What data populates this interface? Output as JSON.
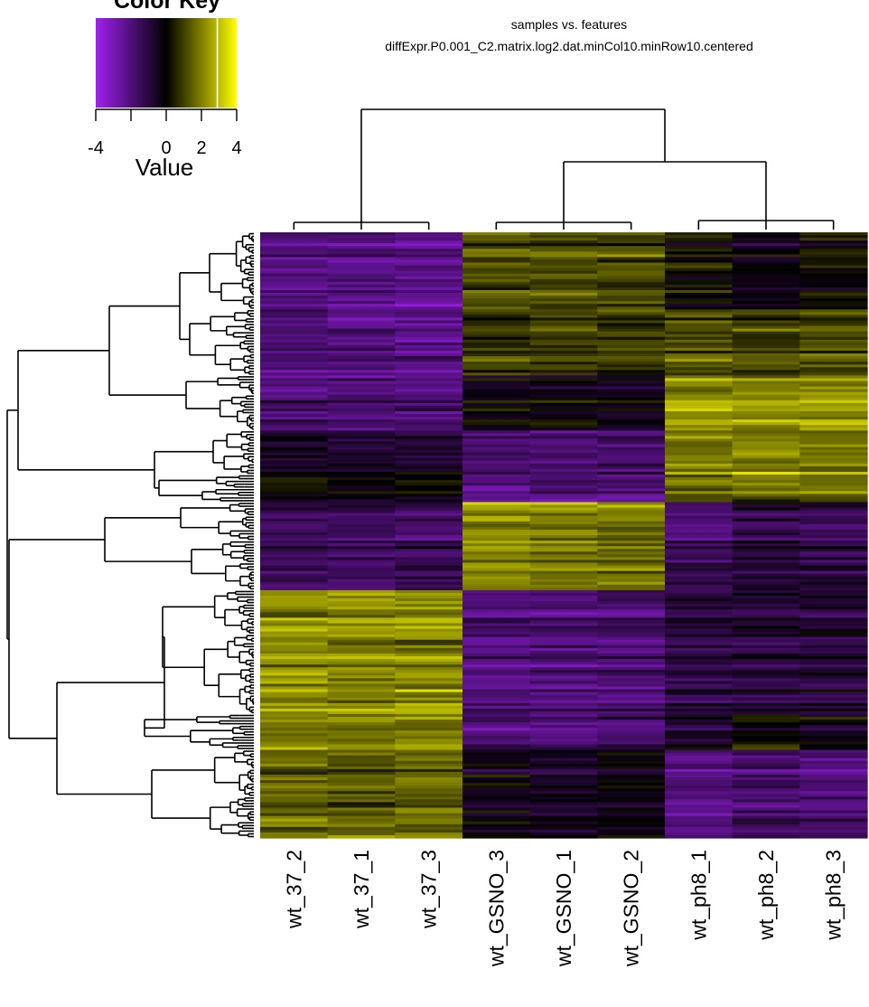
{
  "colors": {
    "low": "#a020f0",
    "mid": "#000000",
    "high": "#ffff00",
    "line": "#000000",
    "background": "#ffffff"
  },
  "color_key": {
    "title": "Color Key",
    "xlabel": "Value",
    "range": [
      -4,
      4
    ],
    "ticks": [
      -4,
      0,
      2,
      4
    ],
    "marker_value": 2.9
  },
  "chart_data": {
    "type": "heatmap",
    "title": "samples vs. features",
    "subtitle": "diffExpr.P0.001_C2.matrix.log2.dat.minCol10.minRow10.centered",
    "columns": [
      "wt_37_2",
      "wt_37_1",
      "wt_37_3",
      "wt_GSNO_3",
      "wt_GSNO_1",
      "wt_GSNO_2",
      "wt_ph8_1",
      "wt_ph8_2",
      "wt_ph8_3"
    ],
    "row_count": 220,
    "value_range": [
      -4,
      4
    ],
    "column_dendrogram": {
      "groups": [
        [
          "wt_37_2",
          "wt_37_1",
          "wt_37_3"
        ],
        [
          "wt_GSNO_3",
          "wt_GSNO_1",
          "wt_GSNO_2"
        ],
        [
          "wt_ph8_1",
          "wt_ph8_2",
          "wt_ph8_3"
        ]
      ],
      "merge_order": [
        "(wt_GSNO, wt_ph8)",
        "(wt_37, (wt_GSNO, wt_ph8))"
      ]
    },
    "row_blocks": [
      {
        "rows": 28,
        "means": [
          -2.2,
          -2.2,
          -2.4,
          1.2,
          1.2,
          1.0,
          0.2,
          -0.3,
          0.1
        ]
      },
      {
        "rows": 24,
        "means": [
          -2.0,
          -2.0,
          -2.2,
          1.0,
          1.0,
          0.9,
          1.3,
          1.2,
          1.3
        ]
      },
      {
        "rows": 20,
        "means": [
          -2.0,
          -2.1,
          -2.1,
          -0.3,
          -0.3,
          -0.5,
          2.2,
          2.1,
          2.2
        ]
      },
      {
        "rows": 16,
        "means": [
          -0.5,
          -0.8,
          -0.9,
          -1.8,
          -1.9,
          -1.6,
          2.0,
          2.1,
          2.0
        ]
      },
      {
        "rows": 10,
        "means": [
          0.3,
          0.0,
          0.2,
          -2.2,
          -1.8,
          -1.8,
          1.8,
          2.0,
          1.9
        ]
      },
      {
        "rows": 14,
        "means": [
          -1.5,
          -1.4,
          -1.7,
          2.2,
          2.0,
          2.0,
          -2.0,
          -1.2,
          -1.4
        ]
      },
      {
        "rows": 18,
        "means": [
          -1.4,
          -1.5,
          -1.2,
          2.3,
          2.0,
          1.9,
          -1.2,
          -0.7,
          -1.0
        ]
      },
      {
        "rows": 45,
        "means": [
          2.3,
          2.2,
          2.2,
          -2.0,
          -1.9,
          -1.8,
          -1.0,
          -0.9,
          -0.8
        ]
      },
      {
        "rows": 13,
        "means": [
          2.0,
          2.0,
          2.1,
          -1.9,
          -1.9,
          -1.6,
          -0.6,
          0.2,
          -0.3
        ]
      },
      {
        "rows": 32,
        "means": [
          1.6,
          1.5,
          1.7,
          -0.3,
          -0.5,
          -0.2,
          -2.0,
          -1.7,
          -1.9
        ]
      }
    ]
  }
}
